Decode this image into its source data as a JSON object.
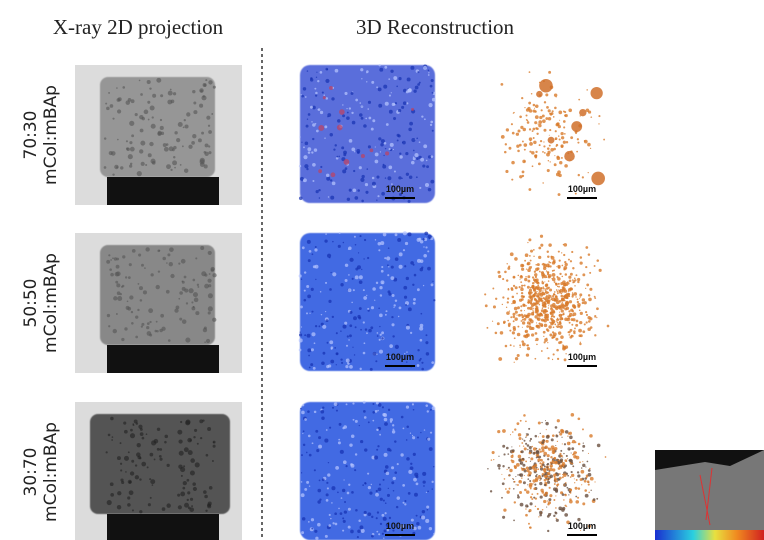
{
  "headers": {
    "projection": "X-ray 2D projection",
    "reconstruction": "3D Reconstruction"
  },
  "rows": [
    {
      "ratio": "70:30",
      "material": "mCol:mBAp",
      "scale_bars": [
        "100µm",
        "100µm"
      ]
    },
    {
      "ratio": "50:50",
      "material": "mCol:mBAp",
      "scale_bars": [
        "100µm",
        "100µm"
      ]
    },
    {
      "ratio": "30:70",
      "material": "mCol:mBAp",
      "scale_bars": [
        "100µm",
        "100µm"
      ]
    }
  ]
}
